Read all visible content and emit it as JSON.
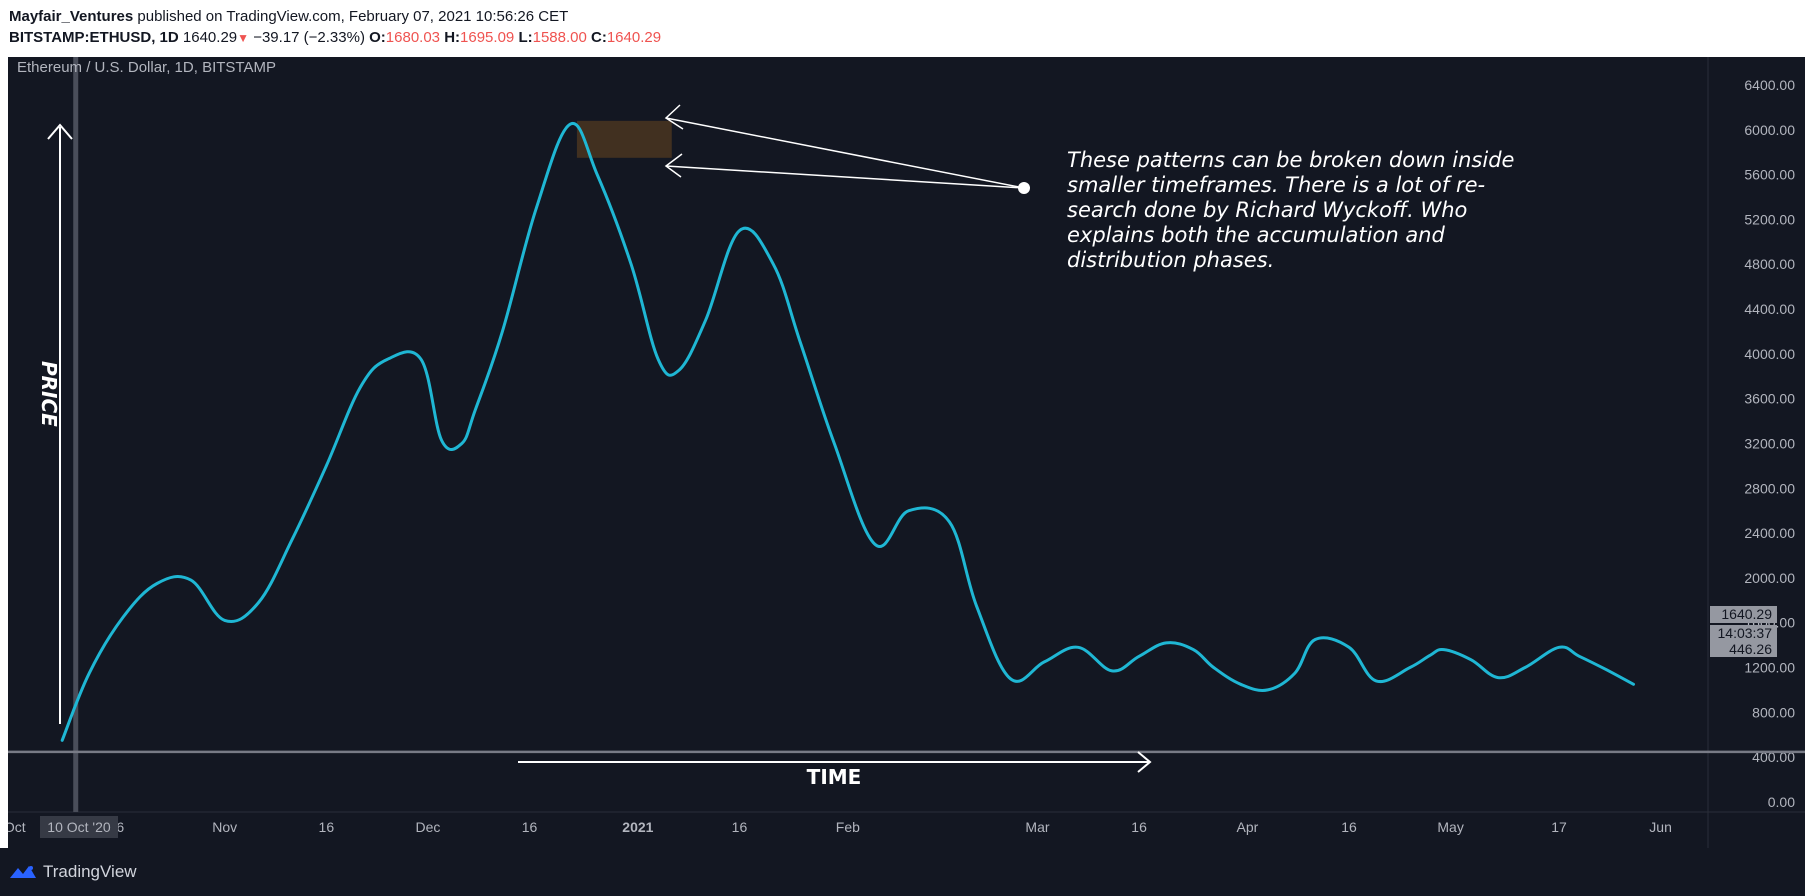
{
  "header": {
    "author": "Mayfair_Ventures",
    "published_text": "published on TradingView.com, February 07, 2021 10:56:26 CET",
    "symbol": "BITSTAMP:ETHUSD, 1D",
    "last_price": "1640.29",
    "change": "−39.17 (−2.33%)",
    "o_label": "O:",
    "o_value": "1680.03",
    "h_label": "H:",
    "h_value": "1695.09",
    "l_label": "L:",
    "l_value": "1588.00",
    "c_label": "C:",
    "c_value": "1640.29"
  },
  "chart_title": "Ethereum / U.S. Dollar, 1D, BITSTAMP",
  "colors": {
    "background": "#131722",
    "line": "#1fb7d4",
    "grid": "#2a2e39",
    "axis_text": "#b2b5be",
    "annotation": "#ffffff",
    "highlight_box": "#4a3520"
  },
  "annotations": {
    "price_label": "PRICE",
    "time_label": "TIME",
    "note_lines": [
      "These patterns can be broken down inside",
      "smaller timeframes. There is a lot of re-",
      "search done by Richard Wyckoff. Who",
      "explains both the accumulation and",
      "distribution phases."
    ]
  },
  "price_tags": {
    "last": "1640.29",
    "countdown": "14:03:37",
    "hline": "446.26"
  },
  "crosshair_date": "10 Oct '20",
  "footer": {
    "brand": "TradingView",
    "logo_icon": "tradingview-logo-icon"
  },
  "chart_data": {
    "type": "line",
    "title": "Ethereum / U.S. Dollar, 1D, BITSTAMP",
    "ylim": [
      -90,
      6650
    ],
    "y_ticks": [
      0,
      400,
      800,
      1200,
      1600,
      2000,
      2400,
      2800,
      3200,
      3600,
      4000,
      4400,
      4800,
      5200,
      5600,
      6000,
      6400
    ],
    "y_tick_labels": [
      "0.00",
      "400.00",
      "800.00",
      "1200.00",
      "1600.00",
      "2000.00",
      "2400.00",
      "2800.00",
      "3200.00",
      "3600.00",
      "4000.00",
      "4400.00",
      "4800.00",
      "5200.00",
      "5600.00",
      "6000.00",
      "6400.00"
    ],
    "x_ticks": [
      "2020-10-01",
      "2020-10-16",
      "2020-11-01",
      "2020-11-16",
      "2020-12-01",
      "2020-12-16",
      "2021-01-01",
      "2021-01-16",
      "2021-02-01",
      "2021-03-01",
      "2021-03-16",
      "2021-04-01",
      "2021-04-16",
      "2021-05-01",
      "2021-05-17",
      "2021-06-01"
    ],
    "x_tick_labels": [
      "Oct",
      "16",
      "Nov",
      "16",
      "Dec",
      "16",
      "2021",
      "16",
      "Feb",
      "Mar",
      "16",
      "Apr",
      "16",
      "May",
      "17",
      "Jun"
    ],
    "xlim": [
      "2020-09-30",
      "2021-06-08"
    ],
    "grid": false,
    "horizontal_line": 446.26,
    "highlight_box": {
      "x": [
        "2020-12-23",
        "2021-01-06"
      ],
      "y": [
        5750,
        6080
      ]
    },
    "series": [
      {
        "x": [
          "2020-10-08",
          "2020-10-12",
          "2020-10-17",
          "2020-10-22",
          "2020-10-27",
          "2020-11-01",
          "2020-11-06",
          "2020-11-11",
          "2020-11-16",
          "2020-11-21",
          "2020-11-25",
          "2020-11-30",
          "2020-12-03",
          "2020-12-06",
          "2020-12-08",
          "2020-12-12",
          "2020-12-17",
          "2020-12-22",
          "2020-12-26",
          "2020-12-31",
          "2021-01-04",
          "2021-01-07",
          "2021-01-11",
          "2021-01-16",
          "2021-01-21",
          "2021-01-25",
          "2021-01-30",
          "2021-02-05",
          "2021-02-10",
          "2021-02-16",
          "2021-02-20",
          "2021-02-25",
          "2021-03-02",
          "2021-03-07",
          "2021-03-12",
          "2021-03-16",
          "2021-03-20",
          "2021-03-24",
          "2021-03-27",
          "2021-03-31",
          "2021-04-04",
          "2021-04-08",
          "2021-04-11",
          "2021-04-16",
          "2021-04-20",
          "2021-04-25",
          "2021-04-28",
          "2021-04-30",
          "2021-05-04",
          "2021-05-08",
          "2021-05-12",
          "2021-05-17",
          "2021-05-20",
          "2021-05-24",
          "2021-05-28"
        ],
        "y": [
          550,
          1150,
          1650,
          1950,
          1980,
          1620,
          1780,
          2350,
          3000,
          3700,
          3950,
          3950,
          3230,
          3200,
          3500,
          4200,
          5300,
          6050,
          5600,
          4800,
          3950,
          3850,
          4300,
          5100,
          4800,
          4100,
          3200,
          2300,
          2600,
          2500,
          1750,
          1100,
          1250,
          1380,
          1170,
          1300,
          1420,
          1360,
          1200,
          1050,
          1000,
          1150,
          1450,
          1380,
          1080,
          1200,
          1310,
          1360,
          1270,
          1110,
          1200,
          1380,
          1300,
          1180,
          1050
        ]
      }
    ]
  }
}
